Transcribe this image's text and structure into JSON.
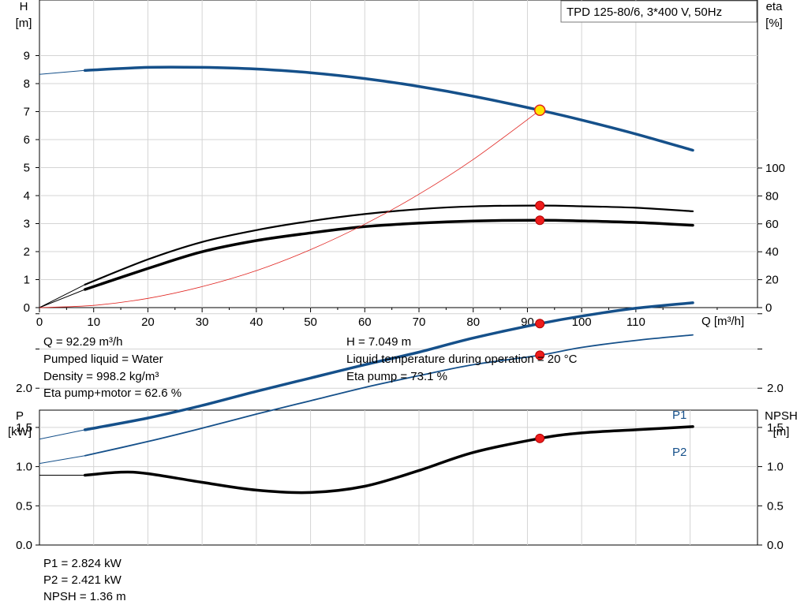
{
  "pump_label": "TPD 125-80/6, 3*400 V, 50Hz",
  "chart_data": [
    {
      "type": "line",
      "name": "pump-performance",
      "xlabel": "Q [m³/h]",
      "ylabel_left": [
        "H",
        "[m]"
      ],
      "ylabel_right": [
        "eta",
        "[%]"
      ],
      "xlim": [
        0,
        130
      ],
      "ylim_left": [
        0,
        10
      ],
      "ylim_right": [
        0,
        200
      ],
      "x_ticks": [
        0,
        10,
        20,
        30,
        40,
        50,
        60,
        70,
        80,
        90,
        100,
        110
      ],
      "y_ticks_left": [
        0,
        1,
        2,
        3,
        4,
        5,
        6,
        7,
        8,
        9
      ],
      "y_ticks_right": [
        0,
        20,
        40,
        60,
        80,
        100
      ],
      "grid": true,
      "series": [
        {
          "id": "H",
          "axis": "left",
          "color": "#15508a",
          "width": 3.5,
          "x": [
            8.4,
            20,
            30,
            40,
            50,
            60,
            70,
            80,
            92.29,
            100,
            110,
            120.5
          ],
          "y": [
            8.47,
            8.58,
            8.58,
            8.52,
            8.39,
            8.18,
            7.9,
            7.55,
            7.049,
            6.7,
            6.2,
            5.62
          ],
          "ext_x": [
            0,
            8.4
          ],
          "ext_y": [
            8.33,
            8.47
          ]
        },
        {
          "id": "eta_pump",
          "axis": "right",
          "color": "#000000",
          "width": 2.2,
          "x": [
            8.4,
            20,
            30,
            40,
            50,
            60,
            70,
            80,
            92.29,
            100,
            110,
            120.5
          ],
          "y": [
            16.5,
            34.5,
            47,
            55.5,
            62,
            67,
            70.5,
            72.5,
            73.1,
            72.6,
            71.5,
            69
          ],
          "ext_x": [
            0,
            8.4
          ],
          "ext_y": [
            0,
            16.5
          ]
        },
        {
          "id": "eta_total",
          "axis": "right",
          "color": "#000000",
          "width": 3.5,
          "x": [
            8.4,
            20,
            30,
            40,
            50,
            60,
            70,
            80,
            92.29,
            100,
            110,
            120.5
          ],
          "y": [
            13,
            28,
            40,
            48,
            53.5,
            58,
            60.5,
            62,
            62.6,
            62.1,
            61,
            59
          ],
          "ext_x": [
            0,
            8.4
          ],
          "ext_y": [
            0,
            13
          ]
        },
        {
          "id": "system",
          "axis": "left",
          "color": "#e0231f",
          "width": 0.8,
          "x": [
            0,
            10,
            20,
            30,
            40,
            50,
            60,
            70,
            80,
            92.29
          ],
          "y": [
            0,
            0.08,
            0.33,
            0.75,
            1.32,
            2.07,
            2.98,
            4.05,
            5.29,
            7.049
          ]
        }
      ],
      "markers": [
        {
          "x": 92.29,
          "y": 7.049,
          "axis": "left",
          "style": "yellow"
        },
        {
          "x": 92.29,
          "y": 73.1,
          "axis": "right",
          "style": "red"
        },
        {
          "x": 92.29,
          "y": 62.6,
          "axis": "right",
          "style": "red"
        }
      ]
    },
    {
      "type": "line",
      "name": "power-npsh",
      "ylabel_left": [
        "P",
        "[kW]"
      ],
      "ylabel_right": [
        "NPSH",
        "[m]"
      ],
      "xlim": [
        0,
        130
      ],
      "ylim": [
        0,
        3.1
      ],
      "y_ticks": [
        "0.0",
        "0.5",
        "1.0",
        "1.5",
        "2.0"
      ],
      "y_tick_values": [
        0,
        0.5,
        1.0,
        1.5,
        2.0
      ],
      "grid": true,
      "series": [
        {
          "id": "P1",
          "name": "P1",
          "color": "#15508a",
          "width": 3.5,
          "x": [
            8.4,
            20,
            30,
            40,
            50,
            60,
            70,
            80,
            92.29,
            100,
            110,
            120.5
          ],
          "y": [
            1.47,
            1.62,
            1.78,
            1.96,
            2.13,
            2.3,
            2.46,
            2.64,
            2.824,
            2.92,
            3.02,
            3.09
          ],
          "ext_x": [
            0,
            8.4
          ],
          "ext_y": [
            1.35,
            1.47
          ]
        },
        {
          "id": "P2",
          "name": "P2",
          "color": "#15508a",
          "width": 1.8,
          "x": [
            8.4,
            20,
            30,
            40,
            50,
            60,
            70,
            80,
            92.29,
            100,
            110,
            120.5
          ],
          "y": [
            1.14,
            1.32,
            1.49,
            1.67,
            1.84,
            2.01,
            2.16,
            2.3,
            2.421,
            2.52,
            2.61,
            2.68
          ],
          "ext_x": [
            0,
            8.4
          ],
          "ext_y": [
            1.04,
            1.14
          ]
        },
        {
          "id": "NPSH",
          "color": "#000000",
          "width": 3.5,
          "x": [
            8.4,
            15,
            20,
            30,
            40,
            50,
            60,
            70,
            80,
            92.29,
            100,
            110,
            120.5
          ],
          "y": [
            0.89,
            0.93,
            0.91,
            0.8,
            0.7,
            0.67,
            0.75,
            0.95,
            1.18,
            1.36,
            1.43,
            1.47,
            1.51
          ],
          "ext_x": [
            0,
            8.4
          ],
          "ext_y": [
            0.89,
            0.89
          ]
        }
      ],
      "markers": [
        {
          "x": 92.29,
          "y": 2.824,
          "style": "red"
        },
        {
          "x": 92.29,
          "y": 2.421,
          "style": "red"
        },
        {
          "x": 92.29,
          "y": 1.36,
          "style": "red"
        }
      ]
    }
  ],
  "info_top": {
    "q": "Q = 92.29 m³/h",
    "liquid": "Pumped liquid = Water",
    "density": "Density = 998.2 kg/m³",
    "eta_total": "Eta pump+motor = 62.6 %",
    "h": "H = 7.049 m",
    "temp": "Liquid temperature during operation = 20 °C",
    "eta_pump": "Eta pump = 73.1 %"
  },
  "info_bottom": {
    "p1": "P1 = 2.824 kW",
    "p2": "P2 = 2.421 kW",
    "npsh": "NPSH = 1.36 m"
  }
}
